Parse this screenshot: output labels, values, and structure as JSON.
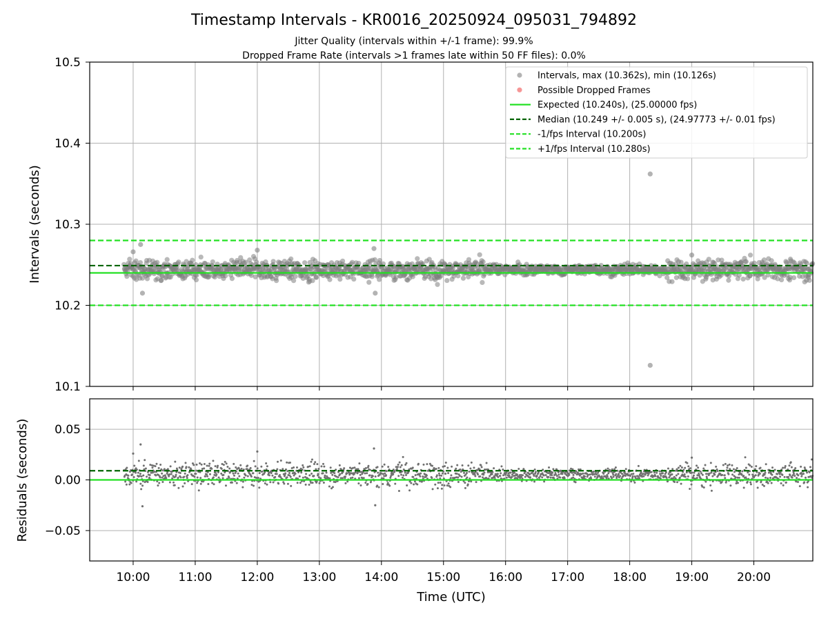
{
  "chart_data": [
    {
      "type": "scatter",
      "title": "Timestamp Intervals - KR0016_20250924_095031_794892",
      "subtitle_lines": [
        "Jitter Quality (intervals within +/-1 frame): 99.9%",
        "Dropped Frame Rate (intervals >1 frames late within 50 FF files): 0.0%"
      ],
      "xlabel": "",
      "ylabel": "Intervals (seconds)",
      "ylim": [
        10.1,
        10.5
      ],
      "yticks": [
        "10.1",
        "10.2",
        "10.3",
        "10.4",
        "10.5"
      ],
      "ytick_values": [
        10.1,
        10.2,
        10.3,
        10.4,
        10.5
      ],
      "grid": true,
      "legend_position": "top-right",
      "series": [
        {
          "name": "Intervals, max (10.362s), min (10.126s)",
          "kind": "points",
          "color": "#808080",
          "x_range_hours": [
            9.85,
            20.95
          ],
          "y_center": 10.244,
          "y_spread": 0.006,
          "notable_points": [
            {
              "x_hours": 10.12,
              "y": 10.275
            },
            {
              "x_hours": 10.0,
              "y": 10.266
            },
            {
              "x_hours": 10.15,
              "y": 10.215
            },
            {
              "x_hours": 12.0,
              "y": 10.268
            },
            {
              "x_hours": 13.88,
              "y": 10.27
            },
            {
              "x_hours": 13.9,
              "y": 10.215
            },
            {
              "x_hours": 18.33,
              "y": 10.362
            },
            {
              "x_hours": 18.33,
              "y": 10.126
            },
            {
              "x_hours": 19.0,
              "y": 10.262
            }
          ]
        },
        {
          "name": "Possible Dropped Frames",
          "kind": "points",
          "color": "#f05050",
          "points": []
        },
        {
          "name": "Expected (10.240s), (25.00000 fps)",
          "kind": "hline",
          "y": 10.24,
          "color": "#22e022",
          "style": "solid"
        },
        {
          "name": "Median (10.249 +/- 0.005 s), (24.97773 +/- 0.01 fps)",
          "kind": "hline",
          "y": 10.249,
          "color": "#006400",
          "style": "dashed"
        },
        {
          "name": "-1/fps Interval (10.200s)",
          "kind": "hline",
          "y": 10.2,
          "color": "#22e022",
          "style": "dashed"
        },
        {
          "name": "+1/fps Interval (10.280s)",
          "kind": "hline",
          "y": 10.28,
          "color": "#22e022",
          "style": "dashed"
        }
      ]
    },
    {
      "type": "scatter",
      "title": "",
      "xlabel": "Time (UTC)",
      "ylabel": "Residuals (seconds)",
      "ylim": [
        -0.08,
        0.08
      ],
      "yticks": [
        "0.05",
        "0.00",
        "−0.05"
      ],
      "ytick_values": [
        0.05,
        0.0,
        -0.05
      ],
      "xlim_hours": [
        9.3,
        20.95
      ],
      "xticks": [
        "10:00",
        "11:00",
        "12:00",
        "13:00",
        "14:00",
        "15:00",
        "16:00",
        "17:00",
        "18:00",
        "19:00",
        "20:00"
      ],
      "xtick_values_hours": [
        10,
        11,
        12,
        13,
        14,
        15,
        16,
        17,
        18,
        19,
        20
      ],
      "grid": true,
      "series": [
        {
          "kind": "points",
          "color": "#707070",
          "x_range_hours": [
            9.85,
            20.95
          ],
          "y_center": 0.005,
          "y_spread": 0.006,
          "notable_points": [
            {
              "x_hours": 10.12,
              "y": 0.035
            },
            {
              "x_hours": 10.0,
              "y": 0.026
            },
            {
              "x_hours": 10.15,
              "y": -0.026
            },
            {
              "x_hours": 12.0,
              "y": 0.028
            },
            {
              "x_hours": 13.88,
              "y": 0.031
            },
            {
              "x_hours": 13.9,
              "y": -0.025
            },
            {
              "x_hours": 19.0,
              "y": 0.022
            }
          ]
        },
        {
          "kind": "hline",
          "y": 0.0,
          "color": "#22e022",
          "style": "solid"
        },
        {
          "kind": "hline",
          "y": 0.009,
          "color": "#006400",
          "style": "dashed"
        }
      ]
    }
  ]
}
